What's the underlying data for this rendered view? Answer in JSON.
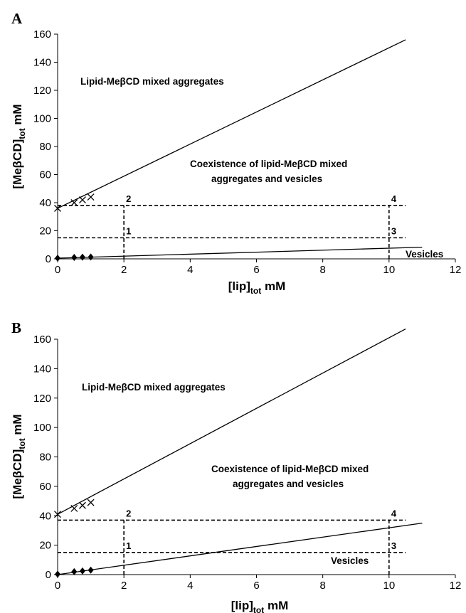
{
  "chart_data": [
    {
      "type": "line",
      "panel": "A",
      "xlabel": {
        "main": "[lip]",
        "sub": "tot",
        "unit": " mM"
      },
      "ylabel": {
        "main": "[MeβCD]",
        "sub": "tot",
        "unit": " mM"
      },
      "xlim": [
        0,
        12
      ],
      "ylim": [
        0,
        160
      ],
      "xticks": [
        0,
        2,
        4,
        6,
        8,
        10,
        12
      ],
      "yticks": [
        0,
        20,
        40,
        60,
        80,
        100,
        120,
        140,
        160
      ],
      "series": [
        {
          "marker": "x",
          "points": [
            [
              0,
              36
            ],
            [
              0.5,
              40
            ],
            [
              0.75,
              42
            ],
            [
              1,
              44
            ]
          ]
        },
        {
          "marker": "diamond",
          "points": [
            [
              0,
              0.5
            ],
            [
              0.5,
              1
            ],
            [
              0.75,
              1.2
            ],
            [
              1,
              1.3
            ]
          ]
        }
      ],
      "lines": [
        {
          "style": "solid",
          "points": [
            [
              0,
              36
            ],
            [
              10.5,
              156
            ]
          ]
        },
        {
          "style": "solid",
          "points": [
            [
              0,
              0.5
            ],
            [
              11,
              8.3
            ]
          ]
        }
      ],
      "dashed": [
        {
          "points": [
            [
              0,
              15
            ],
            [
              10.5,
              15
            ]
          ]
        },
        {
          "points": [
            [
              0,
              38
            ],
            [
              10.5,
              38
            ]
          ]
        },
        {
          "points": [
            [
              2,
              0
            ],
            [
              2,
              38
            ]
          ]
        },
        {
          "points": [
            [
              10,
              0
            ],
            [
              10,
              38
            ]
          ]
        }
      ],
      "point_labels": [
        {
          "text": "1",
          "x": 2,
          "y": 15
        },
        {
          "text": "2",
          "x": 2,
          "y": 38
        },
        {
          "text": "3",
          "x": 10,
          "y": 15
        },
        {
          "text": "4",
          "x": 10,
          "y": 38
        }
      ],
      "annotations": [
        "Lipid-MeβCD mixed aggregates",
        "Coexistence of lipid-MeβCD mixed",
        "aggregates and vesicles",
        "Vesicles"
      ]
    },
    {
      "type": "line",
      "panel": "B",
      "xlabel": {
        "main": "[lip]",
        "sub": "tot",
        "unit": " mM"
      },
      "ylabel": {
        "main": "[MeβCD]",
        "sub": "tot",
        "unit": " mM"
      },
      "xlim": [
        0,
        12
      ],
      "ylim": [
        0,
        160
      ],
      "xticks": [
        0,
        2,
        4,
        6,
        8,
        10,
        12
      ],
      "yticks": [
        0,
        20,
        40,
        60,
        80,
        100,
        120,
        140,
        160
      ],
      "series": [
        {
          "marker": "x",
          "points": [
            [
              0,
              41
            ],
            [
              0.5,
              45
            ],
            [
              0.75,
              47
            ],
            [
              1,
              49
            ]
          ]
        },
        {
          "marker": "diamond",
          "points": [
            [
              0,
              0.3
            ],
            [
              0.5,
              2
            ],
            [
              0.75,
              2.5
            ],
            [
              1,
              3
            ]
          ]
        }
      ],
      "lines": [
        {
          "style": "solid",
          "points": [
            [
              0,
              41
            ],
            [
              10.5,
              167
            ]
          ]
        },
        {
          "style": "solid",
          "points": [
            [
              0,
              0
            ],
            [
              11,
              35
            ]
          ]
        }
      ],
      "dashed": [
        {
          "points": [
            [
              0,
              15
            ],
            [
              10.5,
              15
            ]
          ]
        },
        {
          "points": [
            [
              0,
              37
            ],
            [
              10.5,
              37
            ]
          ]
        },
        {
          "points": [
            [
              2,
              0
            ],
            [
              2,
              37
            ]
          ]
        },
        {
          "points": [
            [
              10,
              0
            ],
            [
              10,
              37
            ]
          ]
        }
      ],
      "point_labels": [
        {
          "text": "1",
          "x": 2,
          "y": 15
        },
        {
          "text": "2",
          "x": 2,
          "y": 37
        },
        {
          "text": "3",
          "x": 10,
          "y": 15
        },
        {
          "text": "4",
          "x": 10,
          "y": 37
        }
      ],
      "annotations": [
        "Lipid-MeβCD mixed aggregates",
        "Coexistence of lipid-MeβCD mixed",
        "aggregates and vesicles",
        "Vesicles"
      ]
    }
  ]
}
